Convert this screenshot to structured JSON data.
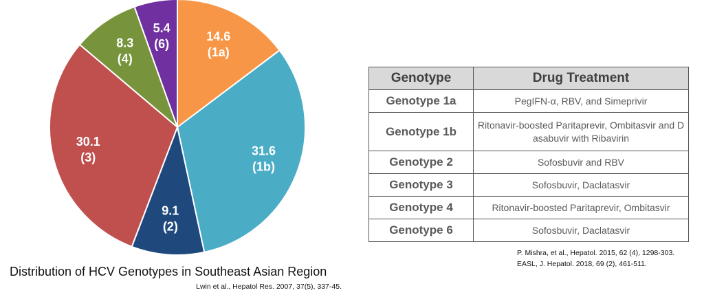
{
  "chart_data": {
    "type": "pie",
    "title": "Distribution of HCV Genotypes in Southeast Asian Region",
    "source": "Lwin et al., Hepatol Res. 2007, 37(5), 337-45.",
    "categories": [
      "(1a)",
      "(1b)",
      "(2)",
      "(3)",
      "(4)",
      "(6)"
    ],
    "values": [
      14.6,
      31.6,
      9.1,
      30.1,
      8.3,
      5.4
    ],
    "colors": [
      "#f79646",
      "#4bacc6",
      "#1f497d",
      "#c0504d",
      "#77933c",
      "#7030a0"
    ]
  },
  "table": {
    "header": [
      "Genotype",
      "Drug Treatment"
    ],
    "rows": [
      [
        "Genotype 1a",
        "PegIFN-α, RBV, and Simeprivir"
      ],
      [
        "Genotype 1b",
        "Ritonavir-boosted Paritaprevir, Ombitasvir and Dasabuvir with Ribavirin"
      ],
      [
        "Genotype 2",
        "Sofosbuvir and RBV"
      ],
      [
        "Genotype 3",
        "Sofosbuvir, Daclatasvir"
      ],
      [
        "Genotype 4",
        "Ritonavir-boosted Paritaprevir, Ombitasvir"
      ],
      [
        "Genotype 6",
        "Sofosbuvir, Daclatasvir"
      ]
    ]
  },
  "references": [
    "P. Mishra, et al., Hepatol. 2015, 62 (4), 1298-303.",
    "EASL, J. Hepatol. 2018, 69 (2), 461-511."
  ]
}
